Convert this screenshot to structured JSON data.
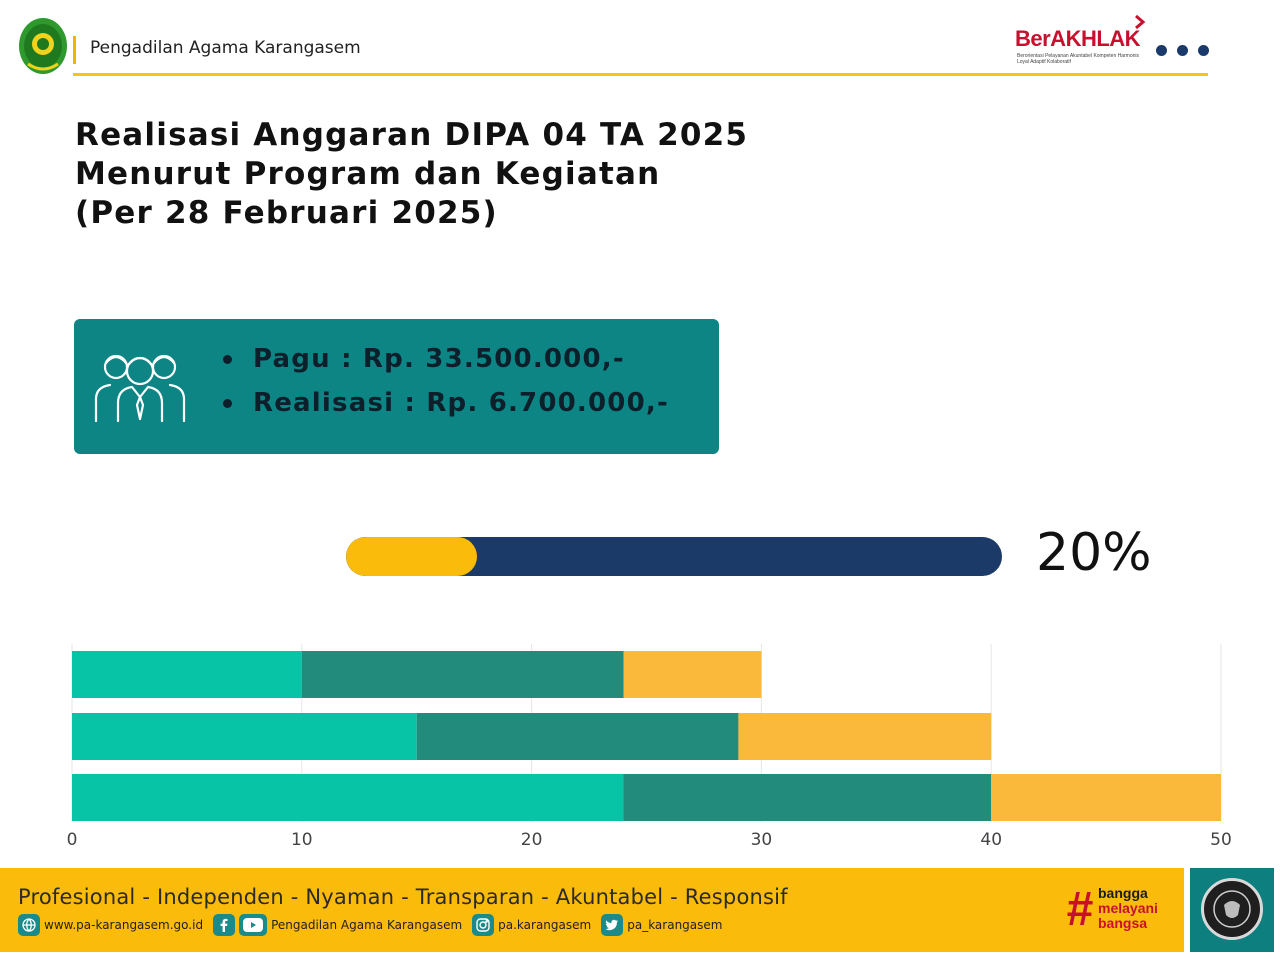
{
  "header": {
    "org_name": "Pengadilan Agama Karangasem",
    "berakhlak_word": "BerAKHLAK",
    "berakhlak_sub": "Berorientasi Pelayanan Akuntabel Kompeten Harmonis Loyal Adaptif Kolaboratif",
    "icons": [
      "court-emblem-icon",
      "more-dots-icon"
    ]
  },
  "title": {
    "line1": "Realisasi Anggaran DIPA 04 TA 2025",
    "line2": "Menurut Program dan Kegiatan",
    "line3": "(Per 28 Februari 2025)"
  },
  "info": {
    "pagu": "Pagu : Rp. 33.500.000,-",
    "realisasi": "Realisasi : Rp. 6.700.000,-",
    "icon": "people-group-icon"
  },
  "progress": {
    "percent": 20,
    "label": "20%"
  },
  "chart_data": {
    "type": "bar",
    "orientation": "horizontal",
    "stacked": true,
    "categories": [
      "",
      "",
      ""
    ],
    "series": [
      {
        "values": [
          10,
          15,
          24
        ],
        "color": "#07c4a6"
      },
      {
        "values": [
          14,
          14,
          16
        ],
        "color": "#238b7c"
      },
      {
        "values": [
          6,
          11,
          10
        ],
        "color": "#fbb93c"
      }
    ],
    "x_ticks": [
      "0",
      "10",
      "20",
      "30",
      "40",
      "50"
    ],
    "xlim": [
      0,
      50
    ],
    "grid": "vertical",
    "legend": "none"
  },
  "footer": {
    "slogan": "Profesional - Independen - Nyaman - Transparan - Akuntabel - Responsif",
    "website": "www.pa-karangasem.go.id",
    "social_name": "Pengadilan Agama Karangasem",
    "instagram": "pa.karangasem",
    "twitter": "pa_karangasem",
    "bangga_1": "bangga",
    "bangga_2": "melayani",
    "bangga_3": "bangsa",
    "colors": {
      "yellow": "#fbbb0a",
      "teal": "#0d8585",
      "navy": "#1c3a67",
      "red": "#c8102e"
    }
  }
}
